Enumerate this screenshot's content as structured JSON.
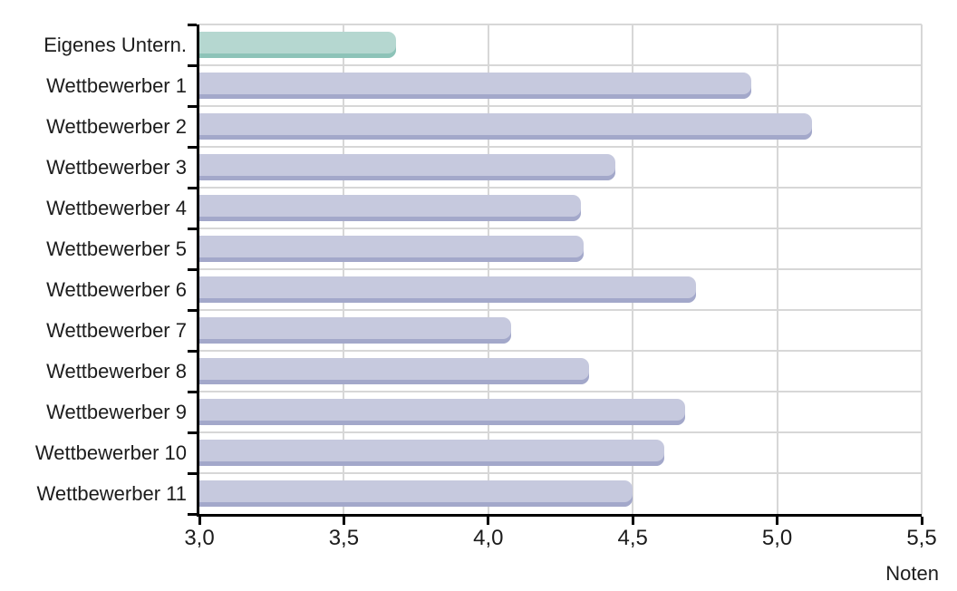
{
  "chart_data": {
    "type": "bar",
    "orientation": "horizontal",
    "xlabel": "Noten",
    "xlim": [
      3.0,
      5.5
    ],
    "grid": true,
    "legend": false,
    "x_ticks": [
      {
        "value": 3.0,
        "label": "3,0"
      },
      {
        "value": 3.5,
        "label": "3,5"
      },
      {
        "value": 4.0,
        "label": "4,0"
      },
      {
        "value": 4.5,
        "label": "4,5"
      },
      {
        "value": 5.0,
        "label": "5,0"
      },
      {
        "value": 5.5,
        "label": "5,5"
      }
    ],
    "categories": [
      "Eigenes Untern.",
      "Wettbewerber 1",
      "Wettbewerber 2",
      "Wettbewerber 3",
      "Wettbewerber 4",
      "Wettbewerber 5",
      "Wettbewerber 6",
      "Wettbewerber 7",
      "Wettbewerber 8",
      "Wettbewerber 9",
      "Wettbewerber 10",
      "Wettbewerber 11"
    ],
    "values": [
      3.68,
      4.91,
      5.12,
      4.44,
      4.32,
      4.33,
      4.72,
      4.08,
      4.35,
      4.68,
      4.61,
      4.5
    ],
    "highlight_index": 0,
    "colors": {
      "highlight_fill": "#b5d7d0",
      "highlight_edge": "#8dc3b8",
      "bar_fill": "#c6c9de",
      "bar_edge": "#a3a8ca",
      "gridline": "#d7d7d7",
      "axis": "#000000",
      "text": "#1c1c1c"
    }
  }
}
